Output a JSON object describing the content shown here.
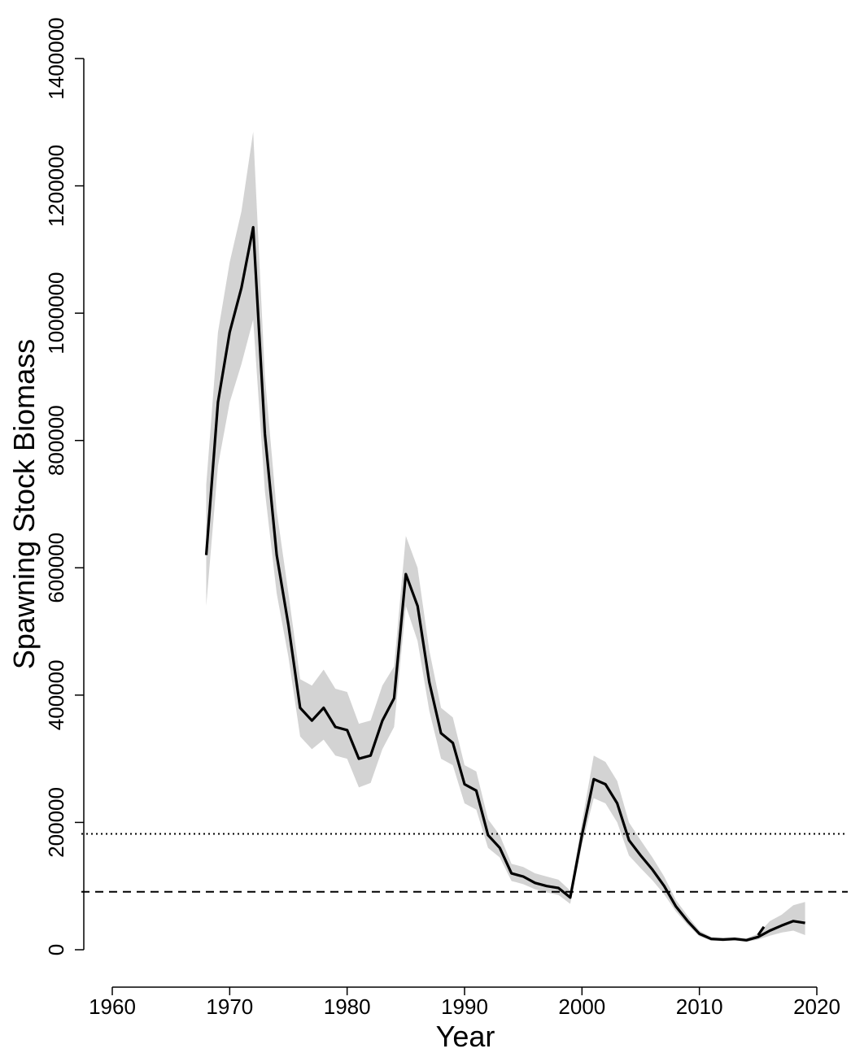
{
  "colors": {
    "line": "#000000",
    "ci_band": "#d3d3d3",
    "axis": "#000000",
    "background": "#ffffff"
  },
  "chart_data": {
    "type": "line",
    "title": "",
    "xlabel": "Year",
    "ylabel": "Spawning Stock Biomass",
    "xlim": [
      1960,
      2022
    ],
    "ylim": [
      0,
      1400000
    ],
    "x_ticks": [
      1960,
      1970,
      1980,
      1990,
      2000,
      2010,
      2020
    ],
    "y_ticks": [
      0,
      200000,
      400000,
      600000,
      800000,
      1000000,
      1200000,
      1400000
    ],
    "grid": false,
    "legend": "none",
    "series": [
      {
        "style": "solid",
        "x": [
          1968,
          1969,
          1970,
          1971,
          1972,
          1973,
          1974,
          1975,
          1976,
          1977,
          1978,
          1979,
          1980,
          1981,
          1982,
          1983,
          1984,
          1985,
          1986,
          1987,
          1988,
          1989,
          1990,
          1991,
          1992,
          1993,
          1994,
          1995,
          1996,
          1997,
          1998,
          1999,
          2000,
          2001,
          2002,
          2003,
          2004,
          2005,
          2006,
          2007,
          2008,
          2009,
          2010,
          2011,
          2012,
          2013,
          2014,
          2015,
          2016,
          2017,
          2018,
          2019
        ],
        "values": [
          620000,
          860000,
          970000,
          1040000,
          1135000,
          810000,
          620000,
          510000,
          380000,
          360000,
          380000,
          350000,
          345000,
          300000,
          305000,
          360000,
          395000,
          590000,
          540000,
          420000,
          340000,
          325000,
          260000,
          250000,
          180000,
          160000,
          120000,
          115000,
          105000,
          100000,
          97000,
          82000,
          180000,
          268000,
          260000,
          230000,
          172000,
          148000,
          126000,
          100000,
          68000,
          45000,
          25000,
          17000,
          16000,
          17000,
          15000,
          20000,
          30000,
          38000,
          45000,
          42000
        ],
        "upper": [
          730000,
          970000,
          1080000,
          1160000,
          1285000,
          900000,
          690000,
          560000,
          425000,
          415000,
          440000,
          410000,
          405000,
          355000,
          360000,
          415000,
          445000,
          650000,
          600000,
          470000,
          380000,
          365000,
          290000,
          280000,
          205000,
          180000,
          135000,
          130000,
          120000,
          115000,
          110000,
          93000,
          200000,
          305000,
          295000,
          265000,
          200000,
          172000,
          145000,
          115000,
          78000,
          53000,
          30000,
          20000,
          19000,
          20000,
          18000,
          25000,
          45000,
          55000,
          70000,
          75000
        ],
        "lower": [
          540000,
          760000,
          860000,
          920000,
          990000,
          720000,
          560000,
          460000,
          335000,
          315000,
          330000,
          305000,
          300000,
          255000,
          262000,
          315000,
          350000,
          540000,
          485000,
          375000,
          300000,
          290000,
          230000,
          220000,
          160000,
          145000,
          108000,
          103000,
          95000,
          90000,
          86000,
          72000,
          165000,
          238000,
          230000,
          200000,
          148000,
          128000,
          109000,
          87000,
          60000,
          39000,
          21000,
          14000,
          13500,
          14500,
          12500,
          16000,
          22000,
          27000,
          30000,
          23000
        ]
      },
      {
        "style": "dotted",
        "x": [
          1960,
          2022
        ],
        "values": [
          182000,
          182000
        ]
      },
      {
        "style": "dashed",
        "x": [
          1960,
          2022
        ],
        "values": [
          91000,
          91000
        ]
      },
      {
        "style": "solid",
        "x": [
          2015,
          2015.5
        ],
        "values": [
          23000,
          36000
        ]
      }
    ]
  }
}
